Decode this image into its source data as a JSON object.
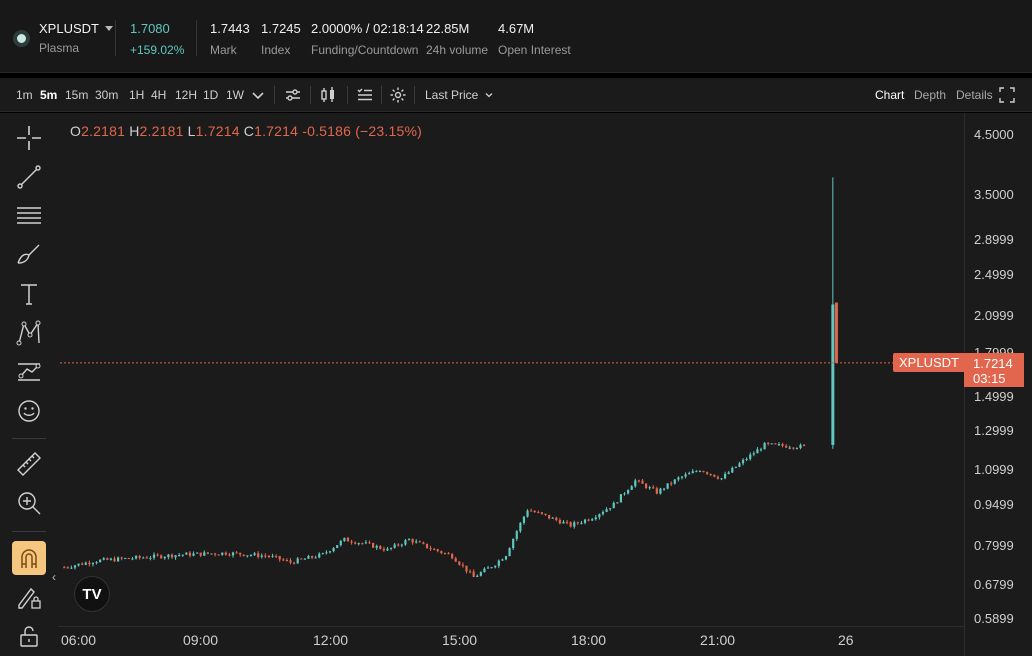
{
  "header": {
    "symbol": "XPLUSDT",
    "symbol_name": "Plasma",
    "last_price": "1.7080",
    "change_pct": "+159.02%",
    "stats": [
      {
        "value": "1.7443",
        "label": "Mark"
      },
      {
        "value": "1.7245",
        "label": "Index"
      },
      {
        "value": "2.0000% / 02:18:14",
        "label": "Funding/Countdown"
      },
      {
        "value": "22.85M",
        "label": "24h volume"
      },
      {
        "value": "4.67M",
        "label": "Open Interest"
      }
    ]
  },
  "toolbar": {
    "timeframes": [
      "1m",
      "5m",
      "15m",
      "30m",
      "1H",
      "4H",
      "12H",
      "1D",
      "1W"
    ],
    "active_timeframe": "5m",
    "price_type": "Last Price",
    "views": [
      "Chart",
      "Depth",
      "Details"
    ],
    "active_view": "Chart"
  },
  "left_tools": [
    "crosshair-icon",
    "trend-line-icon",
    "horizontal-lines-icon",
    "brush-icon",
    "text-icon",
    "pattern-icon",
    "prediction-icon",
    "emoji-icon",
    "ruler-icon",
    "zoom-in-icon",
    "magnet-icon",
    "lock-drawing-icon",
    "unlock-icon"
  ],
  "ohlc": {
    "o_label": "O",
    "o": "2.2181",
    "h_label": "H",
    "h": "2.2181",
    "l_label": "L",
    "l": "1.7214",
    "c_label": "C",
    "c": "1.7214",
    "change": "-0.5186 (−23.15%)"
  },
  "price_tag": {
    "symbol": "XPLUSDT",
    "price": "1.7214",
    "countdown": "03:15"
  },
  "logo_text": "TV",
  "colors": {
    "up": "#5fc8bf",
    "down": "#e2664e",
    "background": "#1b1b1b"
  },
  "chart_data": {
    "type": "candlestick",
    "symbol": "XPLUSDT",
    "interval": "5m",
    "y_scale": "log",
    "y_ticks": [
      "4.5000",
      "3.5000",
      "2.8999",
      "2.4999",
      "2.0999",
      "1.7999",
      "1.4999",
      "1.2999",
      "1.0999",
      "0.9499",
      "0.7999",
      "0.6799",
      "0.5899"
    ],
    "x_ticks": [
      "06:00",
      "09:00",
      "12:00",
      "15:00",
      "18:00",
      "21:00",
      "26"
    ],
    "close_path": [
      {
        "time": "05:45",
        "close": 0.73
      },
      {
        "time": "06:30",
        "close": 0.75
      },
      {
        "time": "07:30",
        "close": 0.76
      },
      {
        "time": "08:30",
        "close": 0.77
      },
      {
        "time": "09:30",
        "close": 0.775
      },
      {
        "time": "10:30",
        "close": 0.765
      },
      {
        "time": "11:00",
        "close": 0.745
      },
      {
        "time": "11:45",
        "close": 0.77
      },
      {
        "time": "12:15",
        "close": 0.82
      },
      {
        "time": "12:45",
        "close": 0.805
      },
      {
        "time": "13:15",
        "close": 0.785
      },
      {
        "time": "13:45",
        "close": 0.82
      },
      {
        "time": "14:15",
        "close": 0.79
      },
      {
        "time": "14:45",
        "close": 0.765
      },
      {
        "time": "15:15",
        "close": 0.7
      },
      {
        "time": "15:45",
        "close": 0.74
      },
      {
        "time": "16:00",
        "close": 0.77
      },
      {
        "time": "16:30",
        "close": 0.93
      },
      {
        "time": "17:00",
        "close": 0.9
      },
      {
        "time": "17:30",
        "close": 0.87
      },
      {
        "time": "18:00",
        "close": 0.9
      },
      {
        "time": "18:30",
        "close": 0.95
      },
      {
        "time": "19:00",
        "close": 1.05
      },
      {
        "time": "19:30",
        "close": 1.0
      },
      {
        "time": "20:00",
        "close": 1.06
      },
      {
        "time": "20:30",
        "close": 1.1
      },
      {
        "time": "21:00",
        "close": 1.06
      },
      {
        "time": "21:30",
        "close": 1.14
      },
      {
        "time": "22:00",
        "close": 1.22
      },
      {
        "time": "23:00",
        "close": 1.21
      }
    ],
    "last_candles": [
      {
        "time": "23:35",
        "open": 1.22,
        "high": 3.75,
        "low": 1.2,
        "close": 2.2
      },
      {
        "time": "23:40",
        "open": 2.2181,
        "high": 2.2181,
        "low": 1.7214,
        "close": 1.7214
      }
    ],
    "current_price": 1.7214
  }
}
